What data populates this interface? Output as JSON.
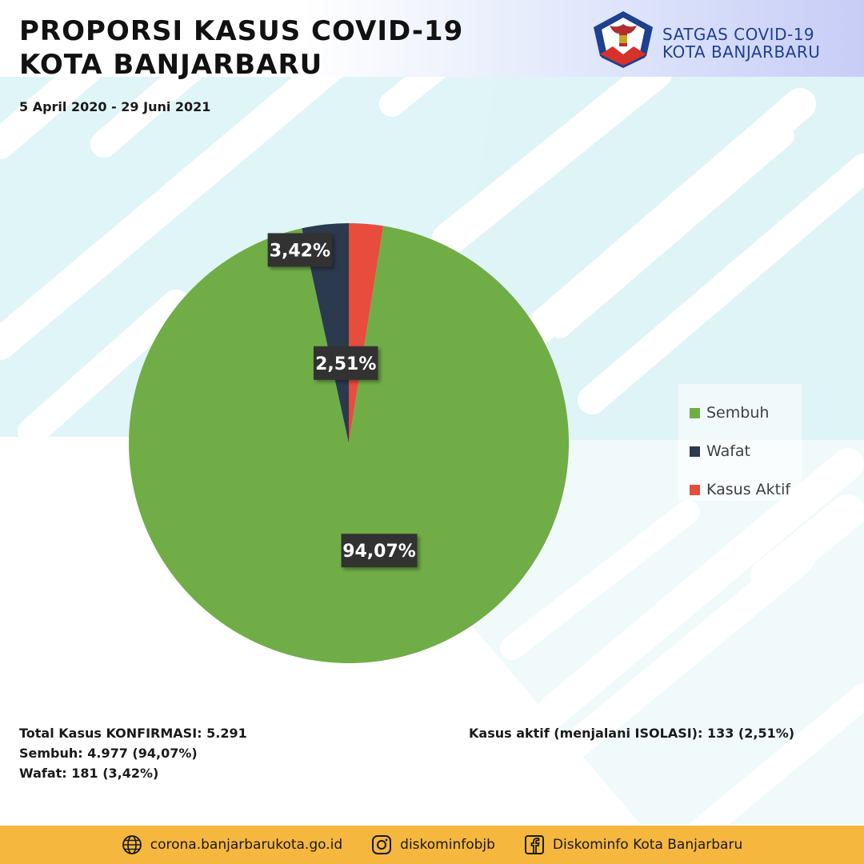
{
  "header": {
    "title_line1": "PROPORSI KASUS COVID-19",
    "title_line2": "KOTA BANJARBARU",
    "date_range": "5 April 2020 - 29 Juni 2021",
    "brand_line1": "SATGAS COVID-19",
    "brand_line2": "KOTA BANJARBARU"
  },
  "chart_data": {
    "type": "pie",
    "title": "PROPORSI KASUS COVID-19 KOTA BANJARBARU",
    "start_angle_deg": 0,
    "slices": [
      {
        "label": "Kasus Aktif",
        "value": 2.51,
        "display": "2,51%",
        "color": "#e84c3d"
      },
      {
        "label": "Sembuh",
        "value": 94.07,
        "display": "94,07%",
        "color": "#70ad47"
      },
      {
        "label": "Wafat",
        "value": 3.42,
        "display": "3,42%",
        "color": "#2b3a4e"
      }
    ],
    "legend": {
      "position": "right",
      "items": [
        {
          "label": "Sembuh",
          "color": "#70ad47"
        },
        {
          "label": "Wafat",
          "color": "#2b3a4e"
        },
        {
          "label": "Kasus Aktif",
          "color": "#e84c3d"
        }
      ]
    }
  },
  "summary": {
    "total": "Total Kasus KONFIRMASI: 5.291",
    "sembuh": "Sembuh: 4.977 (94,07%)",
    "wafat": "Wafat: 181 (3,42%)",
    "aktif": "Kasus aktif (menjalani ISOLASI): 133 (2,51%)"
  },
  "footer": {
    "website": "corona.banjarbarukota.go.id",
    "instagram": "diskominfobjb",
    "facebook": "Diskominfo Kota Banjarbaru",
    "website_icon": "globe-icon",
    "instagram_icon": "instagram-icon",
    "facebook_icon": "facebook-icon"
  },
  "colors": {
    "background_tint": "#dff4f6",
    "footer": "#f5b73e",
    "label_box": "#333333"
  }
}
